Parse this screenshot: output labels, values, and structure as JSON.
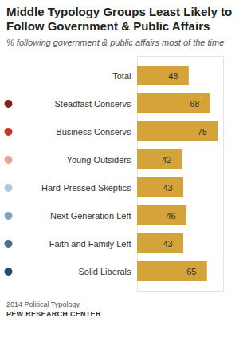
{
  "chart_data": {
    "type": "bar",
    "orientation": "horizontal",
    "title": "Middle Typology Groups Least Likely to Follow Government & Public Affairs",
    "subtitle": "% following government & public affairs most of the time",
    "caption": "2014 Political Typology.",
    "source": "PEW RESEARCH CENTER",
    "categories": [
      "Total",
      "Steadfast Conservs",
      "Business Conservs",
      "Young Outsiders",
      "Hard-Pressed Skeptics",
      "Next Generation Left",
      "Faith and Family Left",
      "Solid Liberals"
    ],
    "values": [
      48,
      68,
      75,
      42,
      43,
      46,
      43,
      65
    ],
    "color": "#d4a43a",
    "colors": [
      null,
      "#7b261c",
      "#c0392b",
      "#eaa39c",
      "#b3c8dd",
      "#7fa3c2",
      "#4d6f8d",
      "#2c4a61"
    ],
    "xlim": [
      0,
      80
    ],
    "xticks": [],
    "data_labels": true,
    "tick_labels": "y",
    "grid": false
  }
}
